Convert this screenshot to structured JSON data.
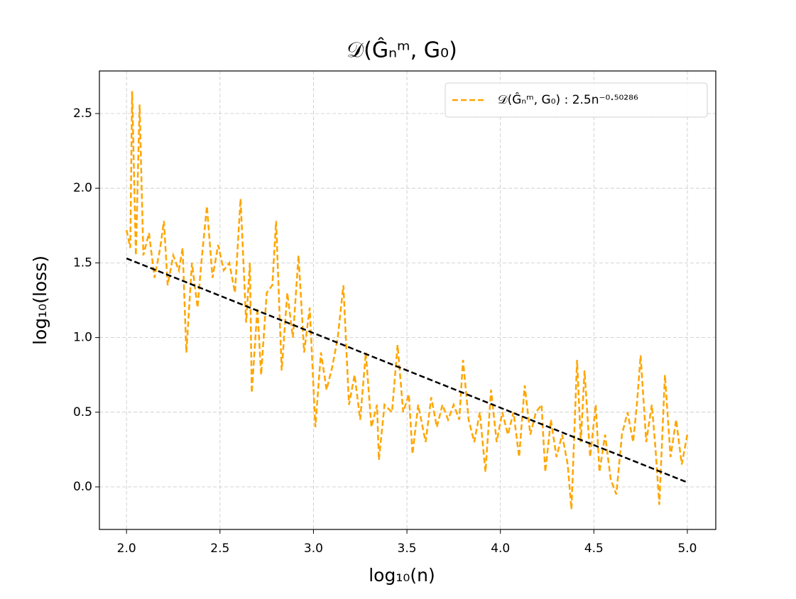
{
  "chart_data": {
    "type": "line",
    "title": "𝒟(Ĝₙᵐ, G₀)",
    "xlabel": "log₁₀(n)",
    "ylabel": "log₁₀(loss)",
    "x": [
      2.0,
      2.02,
      2.03,
      2.05,
      2.07,
      2.09,
      2.12,
      2.15,
      2.18,
      2.2,
      2.22,
      2.25,
      2.28,
      2.3,
      2.32,
      2.35,
      2.38,
      2.4,
      2.43,
      2.46,
      2.49,
      2.52,
      2.55,
      2.58,
      2.61,
      2.64,
      2.66,
      2.67,
      2.7,
      2.72,
      2.75,
      2.78,
      2.8,
      2.83,
      2.86,
      2.89,
      2.92,
      2.95,
      2.98,
      3.01,
      3.04,
      3.07,
      3.1,
      3.13,
      3.16,
      3.19,
      3.22,
      3.25,
      3.28,
      3.31,
      3.34,
      3.35,
      3.38,
      3.42,
      3.45,
      3.48,
      3.51,
      3.53,
      3.56,
      3.6,
      3.63,
      3.66,
      3.69,
      3.72,
      3.75,
      3.78,
      3.8,
      3.83,
      3.86,
      3.89,
      3.92,
      3.95,
      3.98,
      4.01,
      4.04,
      4.07,
      4.1,
      4.13,
      4.16,
      4.19,
      4.22,
      4.24,
      4.27,
      4.3,
      4.33,
      4.36,
      4.38,
      4.41,
      4.43,
      4.45,
      4.48,
      4.51,
      4.53,
      4.56,
      4.59,
      4.62,
      4.65,
      4.68,
      4.71,
      4.73,
      4.75,
      4.78,
      4.81,
      4.83,
      4.85,
      4.88,
      4.91,
      4.94,
      4.97,
      5.0
    ],
    "series": [
      {
        "name": "𝒟(Ĝₙᵐ, G₀) : 2.5n⁻⁰·⁵⁰²⁸⁶",
        "color": "#ffa500",
        "values": [
          1.72,
          1.6,
          2.65,
          1.55,
          2.56,
          1.55,
          1.7,
          1.4,
          1.6,
          1.78,
          1.35,
          1.55,
          1.45,
          1.6,
          0.9,
          1.5,
          1.2,
          1.5,
          1.88,
          1.4,
          1.62,
          1.45,
          1.5,
          1.3,
          1.93,
          1.1,
          1.5,
          0.63,
          1.2,
          0.75,
          1.3,
          1.35,
          1.78,
          0.78,
          1.3,
          1.0,
          1.55,
          0.9,
          1.2,
          0.4,
          0.9,
          0.65,
          0.8,
          1.0,
          1.35,
          0.55,
          0.75,
          0.45,
          0.9,
          0.4,
          0.55,
          0.18,
          0.55,
          0.5,
          0.95,
          0.5,
          0.62,
          0.22,
          0.55,
          0.3,
          0.6,
          0.4,
          0.55,
          0.45,
          0.55,
          0.45,
          0.85,
          0.45,
          0.3,
          0.5,
          0.1,
          0.65,
          0.3,
          0.5,
          0.35,
          0.5,
          0.2,
          0.68,
          0.35,
          0.5,
          0.55,
          0.1,
          0.45,
          0.2,
          0.35,
          0.15,
          -0.15,
          0.85,
          0.3,
          0.78,
          0.2,
          0.55,
          0.1,
          0.35,
          0.05,
          -0.05,
          0.35,
          0.5,
          0.3,
          0.55,
          0.88,
          0.3,
          0.55,
          0.25,
          -0.12,
          0.75,
          0.2,
          0.45,
          0.15,
          0.35
        ]
      }
    ],
    "fit": {
      "x": [
        2.0,
        5.0
      ],
      "values": [
        1.53,
        0.03
      ],
      "color": "#000000"
    },
    "xlim": [
      1.855,
      5.152
    ],
    "ylim": [
      -0.285,
      2.785
    ],
    "xticks": [
      {
        "value": 2,
        "label": "2.0"
      },
      2.5,
      {
        "value": 3,
        "label": "3.0"
      },
      3.5,
      {
        "value": 4,
        "label": "4.0"
      },
      4.5,
      {
        "value": 5,
        "label": "5.0"
      }
    ],
    "yticks": [
      {
        "value": 0,
        "label": "0.0"
      },
      0.5,
      {
        "value": 1,
        "label": "1.0"
      },
      1.5,
      {
        "value": 2,
        "label": "2.0"
      },
      2.5
    ],
    "grid": true,
    "legend": "upper right"
  }
}
